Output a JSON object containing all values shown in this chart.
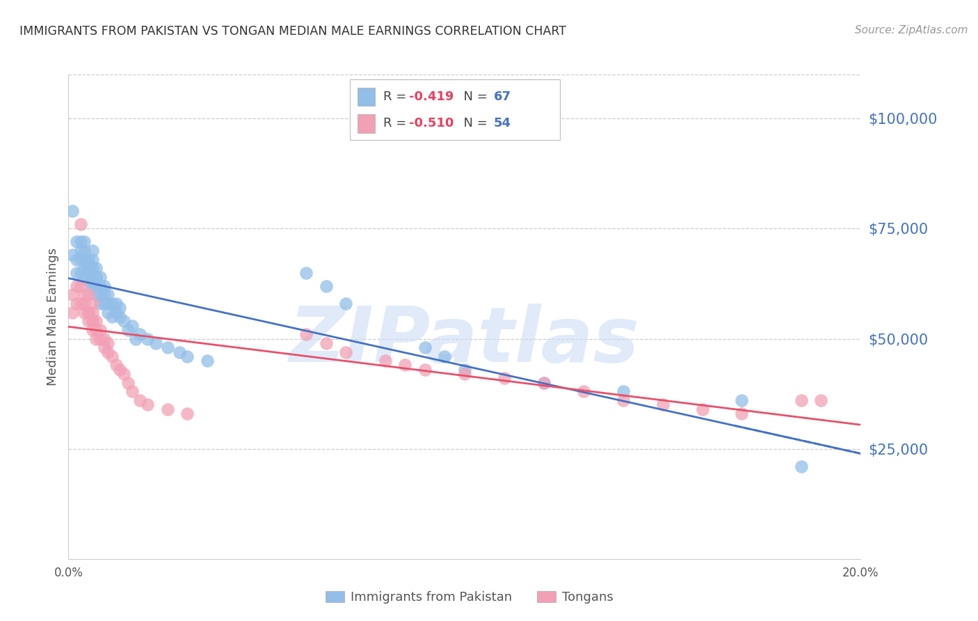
{
  "title": "IMMIGRANTS FROM PAKISTAN VS TONGAN MEDIAN MALE EARNINGS CORRELATION CHART",
  "source": "Source: ZipAtlas.com",
  "ylabel": "Median Male Earnings",
  "watermark": "ZIPatlas",
  "legend_blue_r": "-0.419",
  "legend_blue_n": "67",
  "legend_pink_r": "-0.510",
  "legend_pink_n": "54",
  "legend_blue_label": "Immigrants from Pakistan",
  "legend_pink_label": "Tongans",
  "ytick_labels": [
    "$25,000",
    "$50,000",
    "$75,000",
    "$100,000"
  ],
  "ytick_values": [
    25000,
    50000,
    75000,
    100000
  ],
  "ylim": [
    0,
    110000
  ],
  "xlim": [
    0.0,
    0.2
  ],
  "blue_color": "#92BEE8",
  "pink_color": "#F2A0B5",
  "blue_line_color": "#4472C4",
  "pink_line_color": "#E8506A",
  "right_axis_color": "#4472C4",
  "pakistan_x": [
    0.001,
    0.001,
    0.002,
    0.002,
    0.002,
    0.003,
    0.003,
    0.003,
    0.003,
    0.004,
    0.004,
    0.004,
    0.004,
    0.004,
    0.005,
    0.005,
    0.005,
    0.005,
    0.005,
    0.006,
    0.006,
    0.006,
    0.006,
    0.006,
    0.006,
    0.007,
    0.007,
    0.007,
    0.007,
    0.007,
    0.008,
    0.008,
    0.008,
    0.008,
    0.009,
    0.009,
    0.009,
    0.01,
    0.01,
    0.01,
    0.011,
    0.011,
    0.012,
    0.012,
    0.013,
    0.013,
    0.014,
    0.015,
    0.016,
    0.017,
    0.018,
    0.02,
    0.022,
    0.025,
    0.028,
    0.03,
    0.035,
    0.06,
    0.065,
    0.07,
    0.09,
    0.095,
    0.1,
    0.12,
    0.14,
    0.17,
    0.185
  ],
  "pakistan_y": [
    79000,
    69000,
    68000,
    72000,
    65000,
    70000,
    65000,
    68000,
    72000,
    68000,
    66000,
    64000,
    70000,
    72000,
    68000,
    65000,
    67000,
    63000,
    66000,
    65000,
    63000,
    66000,
    68000,
    70000,
    62000,
    64000,
    62000,
    66000,
    60000,
    64000,
    62000,
    60000,
    58000,
    64000,
    60000,
    58000,
    62000,
    58000,
    60000,
    56000,
    58000,
    55000,
    56000,
    58000,
    55000,
    57000,
    54000,
    52000,
    53000,
    50000,
    51000,
    50000,
    49000,
    48000,
    47000,
    46000,
    45000,
    65000,
    62000,
    58000,
    48000,
    46000,
    43000,
    40000,
    38000,
    36000,
    21000
  ],
  "tongan_x": [
    0.001,
    0.001,
    0.002,
    0.002,
    0.003,
    0.003,
    0.003,
    0.004,
    0.004,
    0.004,
    0.005,
    0.005,
    0.005,
    0.005,
    0.006,
    0.006,
    0.006,
    0.006,
    0.006,
    0.007,
    0.007,
    0.007,
    0.008,
    0.008,
    0.009,
    0.009,
    0.01,
    0.01,
    0.011,
    0.012,
    0.013,
    0.014,
    0.015,
    0.016,
    0.018,
    0.02,
    0.025,
    0.03,
    0.06,
    0.065,
    0.07,
    0.08,
    0.085,
    0.09,
    0.1,
    0.11,
    0.12,
    0.13,
    0.14,
    0.15,
    0.16,
    0.17,
    0.185,
    0.19
  ],
  "tongan_y": [
    60000,
    56000,
    62000,
    58000,
    76000,
    62000,
    58000,
    56000,
    60000,
    58000,
    56000,
    54000,
    60000,
    56000,
    54000,
    52000,
    56000,
    58000,
    54000,
    52000,
    54000,
    50000,
    50000,
    52000,
    50000,
    48000,
    47000,
    49000,
    46000,
    44000,
    43000,
    42000,
    40000,
    38000,
    36000,
    35000,
    34000,
    33000,
    51000,
    49000,
    47000,
    45000,
    44000,
    43000,
    42000,
    41000,
    40000,
    38000,
    36000,
    35000,
    34000,
    33000,
    36000,
    36000
  ]
}
